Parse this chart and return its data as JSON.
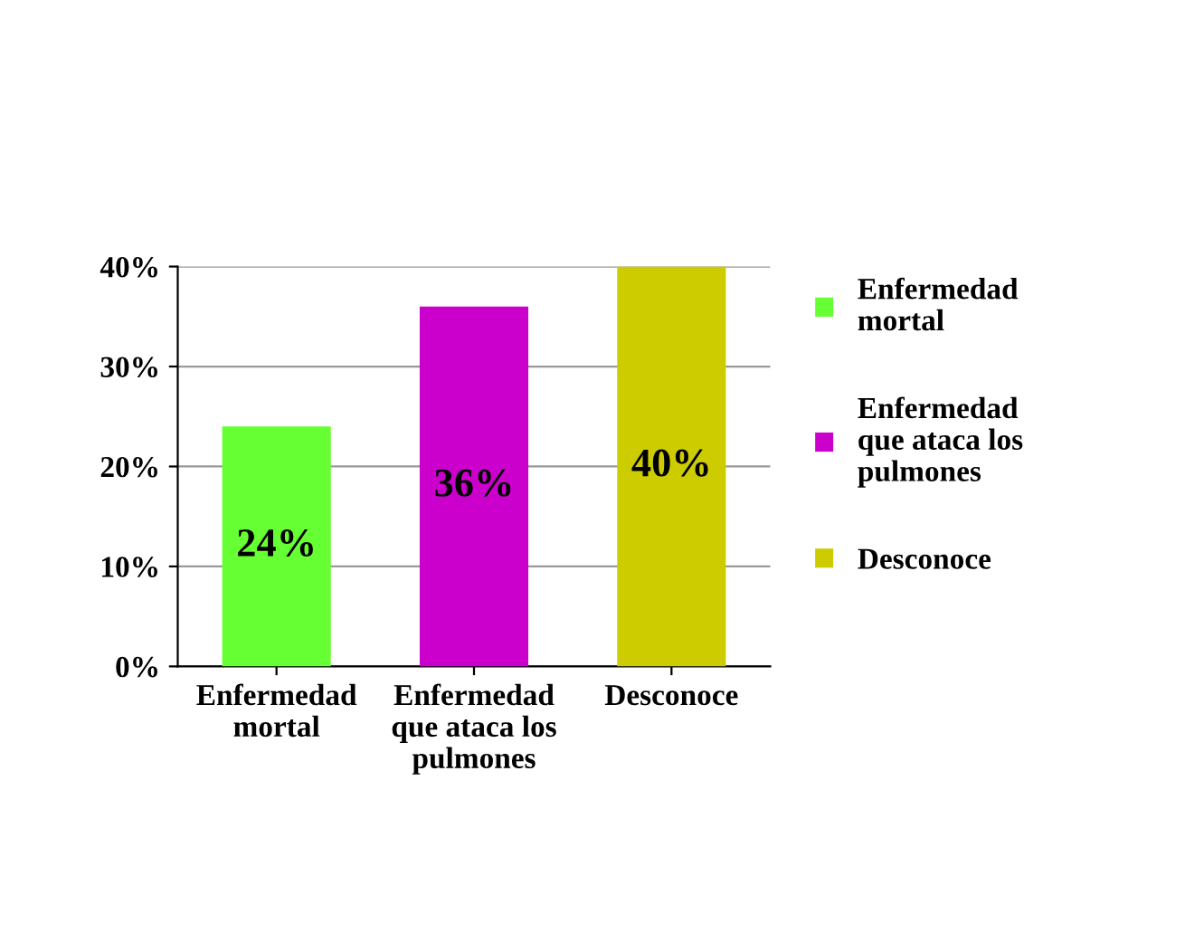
{
  "chart_data": {
    "type": "bar",
    "categories": [
      "Enfermedad mortal",
      "Enfermedad que ataca los pulmones",
      "Desconoce"
    ],
    "series": [
      {
        "name": "Enfermedad mortal",
        "color": "#66ff33",
        "values": [
          24,
          null,
          null
        ],
        "value_labels": [
          "24%",
          null,
          null
        ]
      },
      {
        "name": "Enfermedad que ataca los pulmones",
        "color": "#cc00cc",
        "values": [
          null,
          36,
          null
        ],
        "value_labels": [
          null,
          "36%",
          null
        ]
      },
      {
        "name": "Desconoce",
        "color": "#cccc00",
        "values": [
          null,
          null,
          40
        ],
        "value_labels": [
          null,
          null,
          "40%"
        ]
      }
    ],
    "ylim": [
      0,
      40
    ],
    "yticks": [
      {
        "value": 0,
        "label": "0%"
      },
      {
        "value": 10,
        "label": "10%"
      },
      {
        "value": 20,
        "label": "20%"
      },
      {
        "value": 30,
        "label": "30%"
      },
      {
        "value": 40,
        "label": "40%"
      }
    ],
    "grid": "y",
    "legend": "right"
  }
}
